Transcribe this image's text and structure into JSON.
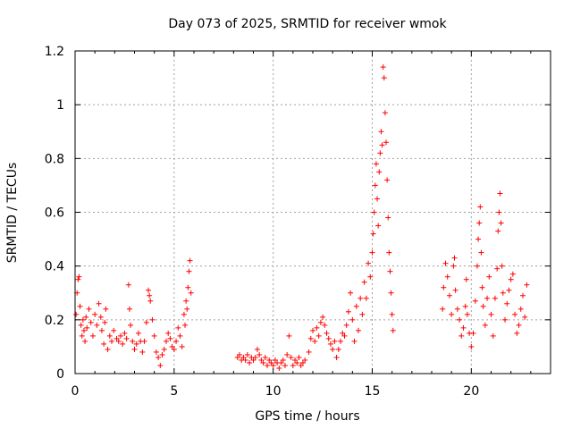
{
  "chart_data": {
    "type": "scatter",
    "title": "Day 073 of 2025, SRMTID for receiver wmok",
    "xlabel": "GPS time / hours",
    "ylabel": "SRMTID / TECUs",
    "xlim": [
      0,
      24
    ],
    "ylim": [
      0,
      1.2
    ],
    "x_ticks": [
      0,
      5,
      10,
      15,
      20
    ],
    "x_tick_labels": [
      "0",
      "5",
      "10",
      "15",
      "20"
    ],
    "y_ticks": [
      0,
      0.2,
      0.4,
      0.6,
      0.8,
      1,
      1.2
    ],
    "y_tick_labels": [
      "0",
      "0.2",
      "0.4",
      "0.6",
      "0.8",
      "1",
      "1.2"
    ],
    "grid": true,
    "marker": "+",
    "color": "#ff0000",
    "series": [
      {
        "name": "wmok",
        "points": [
          [
            0.05,
            0.22
          ],
          [
            0.1,
            0.3
          ],
          [
            0.15,
            0.35
          ],
          [
            0.2,
            0.36
          ],
          [
            0.25,
            0.25
          ],
          [
            0.3,
            0.18
          ],
          [
            0.35,
            0.14
          ],
          [
            0.4,
            0.2
          ],
          [
            0.45,
            0.16
          ],
          [
            0.5,
            0.12
          ],
          [
            0.55,
            0.21
          ],
          [
            0.6,
            0.17
          ],
          [
            0.7,
            0.24
          ],
          [
            0.8,
            0.19
          ],
          [
            0.9,
            0.14
          ],
          [
            1.0,
            0.22
          ],
          [
            1.1,
            0.18
          ],
          [
            1.2,
            0.26
          ],
          [
            1.3,
            0.21
          ],
          [
            1.35,
            0.16
          ],
          [
            1.45,
            0.11
          ],
          [
            1.5,
            0.19
          ],
          [
            1.55,
            0.24
          ],
          [
            1.65,
            0.09
          ],
          [
            1.75,
            0.14
          ],
          [
            1.85,
            0.12
          ],
          [
            1.95,
            0.16
          ],
          [
            2.1,
            0.13
          ],
          [
            2.2,
            0.12
          ],
          [
            2.3,
            0.14
          ],
          [
            2.4,
            0.11
          ],
          [
            2.5,
            0.15
          ],
          [
            2.6,
            0.13
          ],
          [
            2.7,
            0.33
          ],
          [
            2.75,
            0.24
          ],
          [
            2.8,
            0.18
          ],
          [
            2.9,
            0.12
          ],
          [
            3.0,
            0.09
          ],
          [
            3.1,
            0.11
          ],
          [
            3.2,
            0.15
          ],
          [
            3.3,
            0.12
          ],
          [
            3.4,
            0.08
          ],
          [
            3.5,
            0.12
          ],
          [
            3.6,
            0.19
          ],
          [
            3.7,
            0.31
          ],
          [
            3.75,
            0.29
          ],
          [
            3.8,
            0.27
          ],
          [
            3.9,
            0.2
          ],
          [
            4.0,
            0.14
          ],
          [
            4.1,
            0.08
          ],
          [
            4.2,
            0.06
          ],
          [
            4.3,
            0.03
          ],
          [
            4.4,
            0.07
          ],
          [
            4.5,
            0.09
          ],
          [
            4.6,
            0.12
          ],
          [
            4.7,
            0.15
          ],
          [
            4.8,
            0.13
          ],
          [
            4.9,
            0.1
          ],
          [
            5.0,
            0.09
          ],
          [
            5.1,
            0.12
          ],
          [
            5.2,
            0.17
          ],
          [
            5.3,
            0.14
          ],
          [
            5.4,
            0.1
          ],
          [
            5.5,
            0.22
          ],
          [
            5.55,
            0.18
          ],
          [
            5.6,
            0.27
          ],
          [
            5.65,
            0.24
          ],
          [
            5.7,
            0.32
          ],
          [
            5.75,
            0.38
          ],
          [
            5.8,
            0.42
          ],
          [
            5.85,
            0.3
          ],
          [
            8.2,
            0.06
          ],
          [
            8.3,
            0.07
          ],
          [
            8.4,
            0.05
          ],
          [
            8.5,
            0.06
          ],
          [
            8.6,
            0.05
          ],
          [
            8.7,
            0.07
          ],
          [
            8.8,
            0.04
          ],
          [
            8.9,
            0.06
          ],
          [
            9.0,
            0.05
          ],
          [
            9.1,
            0.06
          ],
          [
            9.2,
            0.09
          ],
          [
            9.3,
            0.07
          ],
          [
            9.4,
            0.05
          ],
          [
            9.5,
            0.04
          ],
          [
            9.6,
            0.06
          ],
          [
            9.7,
            0.03
          ],
          [
            9.8,
            0.05
          ],
          [
            9.9,
            0.04
          ],
          [
            10.0,
            0.03
          ],
          [
            10.1,
            0.05
          ],
          [
            10.2,
            0.04
          ],
          [
            10.3,
            0.02
          ],
          [
            10.4,
            0.04
          ],
          [
            10.5,
            0.05
          ],
          [
            10.6,
            0.03
          ],
          [
            10.7,
            0.07
          ],
          [
            10.8,
            0.14
          ],
          [
            10.9,
            0.06
          ],
          [
            11.0,
            0.03
          ],
          [
            11.1,
            0.05
          ],
          [
            11.2,
            0.04
          ],
          [
            11.3,
            0.06
          ],
          [
            11.4,
            0.03
          ],
          [
            11.5,
            0.04
          ],
          [
            11.6,
            0.05
          ],
          [
            11.8,
            0.08
          ],
          [
            11.9,
            0.13
          ],
          [
            12.0,
            0.16
          ],
          [
            12.1,
            0.12
          ],
          [
            12.2,
            0.17
          ],
          [
            12.3,
            0.14
          ],
          [
            12.4,
            0.19
          ],
          [
            12.5,
            0.21
          ],
          [
            12.6,
            0.18
          ],
          [
            12.7,
            0.15
          ],
          [
            12.8,
            0.13
          ],
          [
            12.9,
            0.11
          ],
          [
            13.0,
            0.09
          ],
          [
            13.1,
            0.12
          ],
          [
            13.2,
            0.06
          ],
          [
            13.3,
            0.09
          ],
          [
            13.4,
            0.12
          ],
          [
            13.5,
            0.15
          ],
          [
            13.6,
            0.14
          ],
          [
            13.7,
            0.18
          ],
          [
            13.8,
            0.23
          ],
          [
            13.9,
            0.3
          ],
          [
            14.0,
            0.2
          ],
          [
            14.1,
            0.12
          ],
          [
            14.2,
            0.25
          ],
          [
            14.3,
            0.16
          ],
          [
            14.4,
            0.28
          ],
          [
            14.5,
            0.22
          ],
          [
            14.6,
            0.34
          ],
          [
            14.7,
            0.28
          ],
          [
            14.8,
            0.41
          ],
          [
            14.9,
            0.36
          ],
          [
            15.0,
            0.45
          ],
          [
            15.05,
            0.52
          ],
          [
            15.1,
            0.6
          ],
          [
            15.15,
            0.7
          ],
          [
            15.2,
            0.78
          ],
          [
            15.25,
            0.65
          ],
          [
            15.3,
            0.55
          ],
          [
            15.35,
            0.75
          ],
          [
            15.4,
            0.82
          ],
          [
            15.45,
            0.9
          ],
          [
            15.5,
            0.85
          ],
          [
            15.55,
            1.14
          ],
          [
            15.6,
            1.1
          ],
          [
            15.65,
            0.97
          ],
          [
            15.7,
            0.86
          ],
          [
            15.75,
            0.72
          ],
          [
            15.8,
            0.58
          ],
          [
            15.85,
            0.45
          ],
          [
            15.9,
            0.38
          ],
          [
            15.95,
            0.3
          ],
          [
            16.0,
            0.22
          ],
          [
            16.05,
            0.16
          ],
          [
            18.55,
            0.24
          ],
          [
            18.6,
            0.32
          ],
          [
            18.7,
            0.41
          ],
          [
            18.8,
            0.36
          ],
          [
            18.9,
            0.29
          ],
          [
            19.0,
            0.22
          ],
          [
            19.1,
            0.4
          ],
          [
            19.15,
            0.43
          ],
          [
            19.2,
            0.31
          ],
          [
            19.3,
            0.24
          ],
          [
            19.4,
            0.2
          ],
          [
            19.5,
            0.14
          ],
          [
            19.6,
            0.17
          ],
          [
            19.7,
            0.25
          ],
          [
            19.75,
            0.35
          ],
          [
            19.8,
            0.22
          ],
          [
            19.9,
            0.15
          ],
          [
            20.0,
            0.1
          ],
          [
            20.1,
            0.15
          ],
          [
            20.2,
            0.27
          ],
          [
            20.3,
            0.4
          ],
          [
            20.35,
            0.5
          ],
          [
            20.4,
            0.56
          ],
          [
            20.45,
            0.62
          ],
          [
            20.5,
            0.45
          ],
          [
            20.55,
            0.32
          ],
          [
            20.6,
            0.25
          ],
          [
            20.7,
            0.18
          ],
          [
            20.8,
            0.28
          ],
          [
            20.9,
            0.36
          ],
          [
            21.0,
            0.22
          ],
          [
            21.1,
            0.14
          ],
          [
            21.2,
            0.28
          ],
          [
            21.3,
            0.39
          ],
          [
            21.35,
            0.53
          ],
          [
            21.4,
            0.6
          ],
          [
            21.45,
            0.67
          ],
          [
            21.5,
            0.56
          ],
          [
            21.55,
            0.4
          ],
          [
            21.6,
            0.3
          ],
          [
            21.7,
            0.2
          ],
          [
            21.8,
            0.26
          ],
          [
            21.9,
            0.31
          ],
          [
            22.0,
            0.35
          ],
          [
            22.1,
            0.37
          ],
          [
            22.2,
            0.22
          ],
          [
            22.3,
            0.15
          ],
          [
            22.4,
            0.18
          ],
          [
            22.5,
            0.24
          ],
          [
            22.6,
            0.29
          ],
          [
            22.7,
            0.21
          ],
          [
            22.8,
            0.33
          ]
        ]
      }
    ]
  }
}
